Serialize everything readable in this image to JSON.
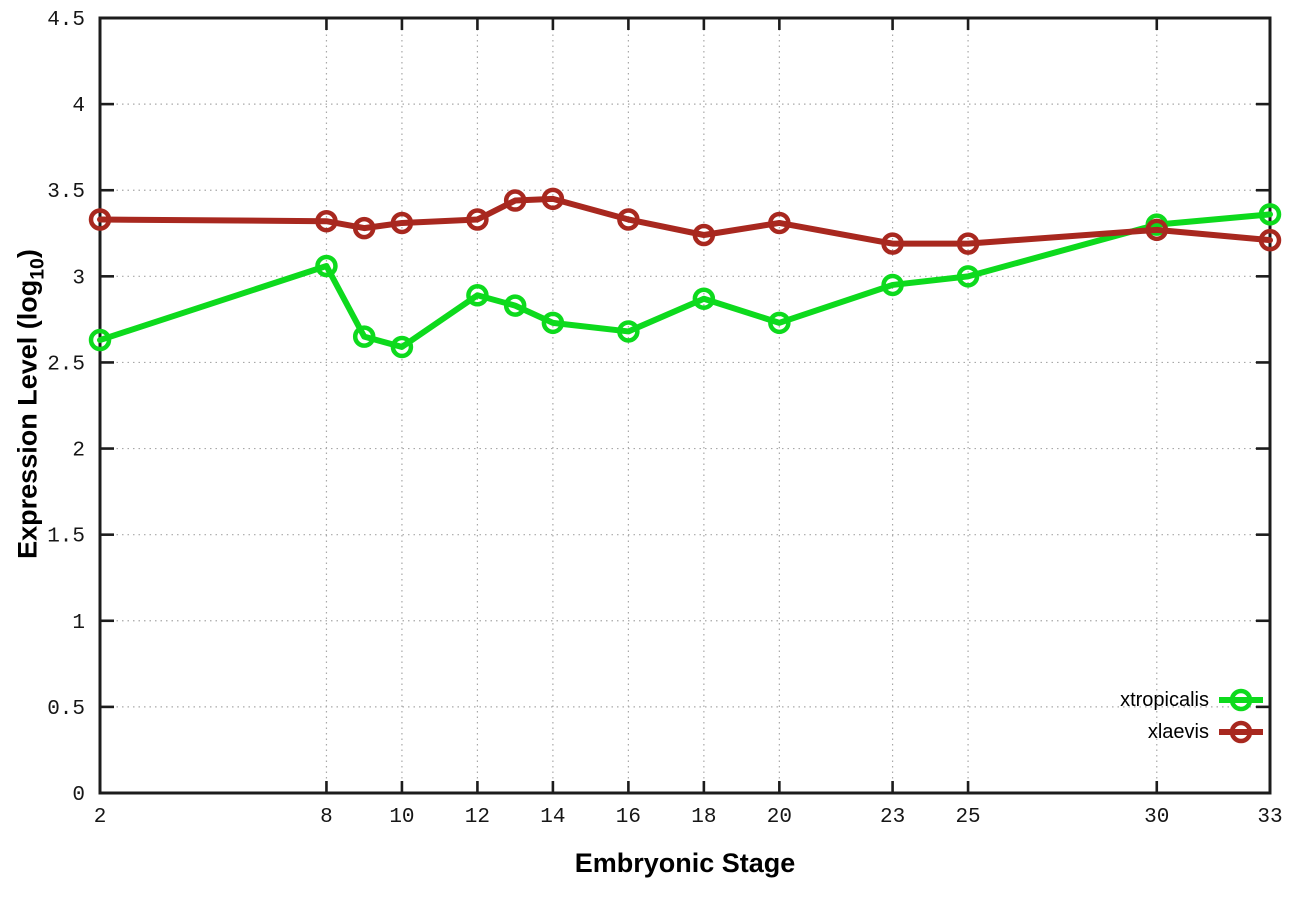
{
  "chart_data": {
    "type": "line",
    "title": "",
    "xlabel": "Embryonic Stage",
    "ylabel": "Expression Level (log10)",
    "ylabel_prefix": "Expression Level (log",
    "ylabel_sub": "10",
    "ylabel_suffix": ")",
    "xlim": [
      2,
      33
    ],
    "ylim": [
      0,
      4.5
    ],
    "xticks": [
      2,
      8,
      10,
      12,
      14,
      16,
      18,
      20,
      23,
      25,
      30,
      33
    ],
    "xtick_labels": [
      "2",
      "8",
      "10",
      "12",
      "14",
      "16",
      "18",
      "20",
      "23",
      "25",
      "30",
      "33"
    ],
    "yticks": [
      0,
      0.5,
      1,
      1.5,
      2,
      2.5,
      3,
      3.5,
      4,
      4.5
    ],
    "ytick_labels": [
      "0",
      "0.5",
      "1",
      "1.5",
      "2",
      "2.5",
      "3",
      "3.5",
      "4",
      "4.5"
    ],
    "grid": true,
    "legend_position": "bottom-right",
    "x": [
      2,
      8,
      9,
      10,
      12,
      13,
      14,
      16,
      18,
      20,
      23,
      25,
      30,
      33
    ],
    "series": [
      {
        "name": "xtropicalis",
        "color": "#0dda1d",
        "values": [
          2.63,
          3.06,
          2.65,
          2.59,
          2.89,
          2.83,
          2.73,
          2.68,
          2.87,
          2.73,
          2.95,
          3.0,
          3.3,
          3.36
        ]
      },
      {
        "name": "xlaevis",
        "color": "#a8281f",
        "values": [
          3.33,
          3.32,
          3.28,
          3.31,
          3.33,
          3.44,
          3.45,
          3.33,
          3.24,
          3.31,
          3.19,
          3.19,
          3.27,
          3.21
        ]
      }
    ]
  },
  "style": {
    "frame_color": "#1c1c1c",
    "grid_color": "#a8a8a8",
    "tick_label_color": "#161616",
    "background": "#ffffff"
  }
}
